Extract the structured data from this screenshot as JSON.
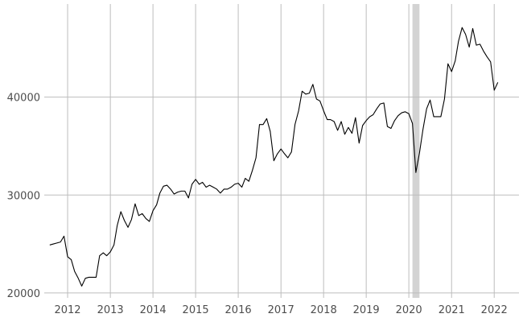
{
  "chart_data": {
    "type": "line",
    "title": "",
    "xlabel": "",
    "ylabel": "",
    "grid": true,
    "legend": "none",
    "xlim": [
      "2011-06-15",
      "2022-08-01"
    ],
    "ylim": [
      19500,
      49500
    ],
    "x_ticks": [
      {
        "date": "2012-01-01",
        "label": "2012"
      },
      {
        "date": "2013-01-01",
        "label": "2013"
      },
      {
        "date": "2014-01-01",
        "label": "2014"
      },
      {
        "date": "2015-01-01",
        "label": "2015"
      },
      {
        "date": "2016-01-01",
        "label": "2016"
      },
      {
        "date": "2017-01-01",
        "label": "2017"
      },
      {
        "date": "2018-01-01",
        "label": "2018"
      },
      {
        "date": "2019-01-01",
        "label": "2019"
      },
      {
        "date": "2020-01-01",
        "label": "2020"
      },
      {
        "date": "2021-01-01",
        "label": "2021"
      },
      {
        "date": "2022-01-01",
        "label": "2022"
      }
    ],
    "y_ticks": [
      {
        "value": 20000,
        "label": "20000"
      },
      {
        "value": 30000,
        "label": "30000"
      },
      {
        "value": 40000,
        "label": "40000"
      }
    ],
    "shaded_period": {
      "start": "2020-02-01",
      "end": "2020-04-01",
      "color": "#d3d3d3"
    },
    "line_color": "#000000",
    "series": [
      {
        "points": [
          [
            "2011-08-01",
            24900
          ],
          [
            "2011-09-01",
            25000
          ],
          [
            "2011-10-01",
            25100
          ],
          [
            "2011-11-01",
            25200
          ],
          [
            "2011-12-01",
            25800
          ],
          [
            "2012-01-01",
            23700
          ],
          [
            "2012-02-01",
            23400
          ],
          [
            "2012-03-01",
            22200
          ],
          [
            "2012-04-01",
            21500
          ],
          [
            "2012-05-01",
            20700
          ],
          [
            "2012-06-01",
            21500
          ],
          [
            "2012-07-01",
            21600
          ],
          [
            "2012-08-01",
            21600
          ],
          [
            "2012-09-01",
            21600
          ],
          [
            "2012-10-01",
            23800
          ],
          [
            "2012-11-01",
            24100
          ],
          [
            "2012-12-01",
            23800
          ],
          [
            "2013-01-01",
            24200
          ],
          [
            "2013-02-01",
            24900
          ],
          [
            "2013-03-01",
            26900
          ],
          [
            "2013-04-01",
            28300
          ],
          [
            "2013-05-01",
            27400
          ],
          [
            "2013-06-01",
            26700
          ],
          [
            "2013-07-01",
            27500
          ],
          [
            "2013-08-01",
            29100
          ],
          [
            "2013-09-01",
            27900
          ],
          [
            "2013-10-01",
            28100
          ],
          [
            "2013-11-01",
            27600
          ],
          [
            "2013-12-01",
            27300
          ],
          [
            "2014-01-01",
            28400
          ],
          [
            "2014-02-01",
            29000
          ],
          [
            "2014-03-01",
            30200
          ],
          [
            "2014-04-01",
            30900
          ],
          [
            "2014-05-01",
            31000
          ],
          [
            "2014-06-01",
            30600
          ],
          [
            "2014-07-01",
            30100
          ],
          [
            "2014-08-01",
            30300
          ],
          [
            "2014-09-01",
            30400
          ],
          [
            "2014-10-01",
            30400
          ],
          [
            "2014-11-01",
            29700
          ],
          [
            "2014-12-01",
            31100
          ],
          [
            "2015-01-01",
            31600
          ],
          [
            "2015-02-01",
            31100
          ],
          [
            "2015-03-01",
            31300
          ],
          [
            "2015-04-01",
            30800
          ],
          [
            "2015-05-01",
            31000
          ],
          [
            "2015-06-01",
            30800
          ],
          [
            "2015-07-01",
            30600
          ],
          [
            "2015-08-01",
            30200
          ],
          [
            "2015-09-01",
            30600
          ],
          [
            "2015-10-01",
            30600
          ],
          [
            "2015-11-01",
            30800
          ],
          [
            "2015-12-01",
            31100
          ],
          [
            "2016-01-01",
            31200
          ],
          [
            "2016-02-01",
            30800
          ],
          [
            "2016-03-01",
            31700
          ],
          [
            "2016-04-01",
            31400
          ],
          [
            "2016-05-01",
            32500
          ],
          [
            "2016-06-01",
            33800
          ],
          [
            "2016-07-01",
            37200
          ],
          [
            "2016-08-01",
            37200
          ],
          [
            "2016-09-01",
            37800
          ],
          [
            "2016-10-01",
            36500
          ],
          [
            "2016-11-01",
            33500
          ],
          [
            "2016-12-01",
            34200
          ],
          [
            "2017-01-01",
            34700
          ],
          [
            "2017-02-01",
            34200
          ],
          [
            "2017-03-01",
            33800
          ],
          [
            "2017-04-01",
            34400
          ],
          [
            "2017-05-01",
            37200
          ],
          [
            "2017-06-01",
            38600
          ],
          [
            "2017-07-01",
            40600
          ],
          [
            "2017-08-01",
            40300
          ],
          [
            "2017-09-01",
            40400
          ],
          [
            "2017-10-01",
            41300
          ],
          [
            "2017-11-01",
            39800
          ],
          [
            "2017-12-01",
            39600
          ],
          [
            "2018-01-01",
            38600
          ],
          [
            "2018-02-01",
            37700
          ],
          [
            "2018-03-01",
            37700
          ],
          [
            "2018-04-01",
            37500
          ],
          [
            "2018-05-01",
            36600
          ],
          [
            "2018-06-01",
            37500
          ],
          [
            "2018-07-01",
            36200
          ],
          [
            "2018-08-01",
            36900
          ],
          [
            "2018-09-01",
            36300
          ],
          [
            "2018-10-01",
            37900
          ],
          [
            "2018-11-01",
            35300
          ],
          [
            "2018-12-01",
            37100
          ],
          [
            "2019-01-01",
            37600
          ],
          [
            "2019-02-01",
            38000
          ],
          [
            "2019-03-01",
            38200
          ],
          [
            "2019-04-01",
            38800
          ],
          [
            "2019-05-01",
            39300
          ],
          [
            "2019-06-01",
            39400
          ],
          [
            "2019-07-01",
            37000
          ],
          [
            "2019-08-01",
            36800
          ],
          [
            "2019-09-01",
            37600
          ],
          [
            "2019-10-01",
            38100
          ],
          [
            "2019-11-01",
            38400
          ],
          [
            "2019-12-01",
            38500
          ],
          [
            "2020-01-01",
            38300
          ],
          [
            "2020-02-01",
            37300
          ],
          [
            "2020-03-01",
            32300
          ],
          [
            "2020-04-01",
            34300
          ],
          [
            "2020-05-01",
            36700
          ],
          [
            "2020-06-01",
            38800
          ],
          [
            "2020-07-01",
            39700
          ],
          [
            "2020-08-01",
            38000
          ],
          [
            "2020-09-01",
            38000
          ],
          [
            "2020-10-01",
            38000
          ],
          [
            "2020-11-01",
            39800
          ],
          [
            "2020-12-01",
            43400
          ],
          [
            "2021-01-01",
            42600
          ],
          [
            "2021-02-01",
            43700
          ],
          [
            "2021-03-01",
            45700
          ],
          [
            "2021-04-01",
            47100
          ],
          [
            "2021-05-01",
            46400
          ],
          [
            "2021-06-01",
            45100
          ],
          [
            "2021-07-01",
            47000
          ],
          [
            "2021-08-01",
            45300
          ],
          [
            "2021-09-01",
            45400
          ],
          [
            "2021-10-01",
            44700
          ],
          [
            "2021-11-01",
            44100
          ],
          [
            "2021-12-01",
            43600
          ],
          [
            "2022-01-01",
            40700
          ],
          [
            "2022-02-01",
            41500
          ]
        ]
      }
    ]
  }
}
